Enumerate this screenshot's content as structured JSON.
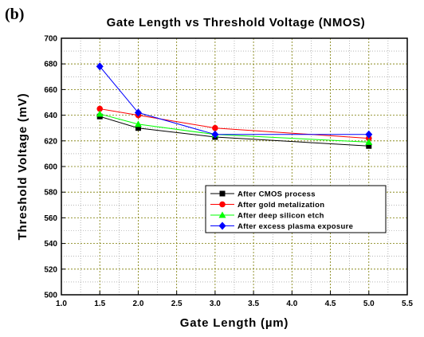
{
  "chart_data": {
    "type": "line",
    "panel_label": "(b)",
    "title": "Gate Length vs Threshold Voltage (NMOS)",
    "xlabel": "Gate Length (µm)",
    "ylabel": "Threshold Voltage (mV)",
    "xlim": [
      1.0,
      5.5
    ],
    "ylim": [
      500,
      700
    ],
    "xticks": [
      "1.0",
      "1.5",
      "2.0",
      "2.5",
      "3.0",
      "3.5",
      "4.0",
      "4.5",
      "5.0",
      "5.5"
    ],
    "yticks": [
      "500",
      "520",
      "540",
      "560",
      "580",
      "600",
      "620",
      "640",
      "660",
      "680",
      "700"
    ],
    "grid": true,
    "legend_position": "center-right",
    "x": [
      1.5,
      2.0,
      3.0,
      5.0
    ],
    "series": [
      {
        "name": "After CMOS process",
        "color": "#000000",
        "marker": "square",
        "values": [
          639,
          630,
          623,
          616
        ]
      },
      {
        "name": "After gold metalization",
        "color": "#ff0000",
        "marker": "circle",
        "values": [
          645,
          640,
          630,
          622
        ]
      },
      {
        "name": "After deep silicon etch",
        "color": "#00ff00",
        "marker": "triangle",
        "values": [
          641,
          633,
          625,
          619
        ]
      },
      {
        "name": "After excess plasma exposure",
        "color": "#0000ff",
        "marker": "diamond",
        "values": [
          678,
          642,
          625,
          625
        ]
      }
    ]
  }
}
